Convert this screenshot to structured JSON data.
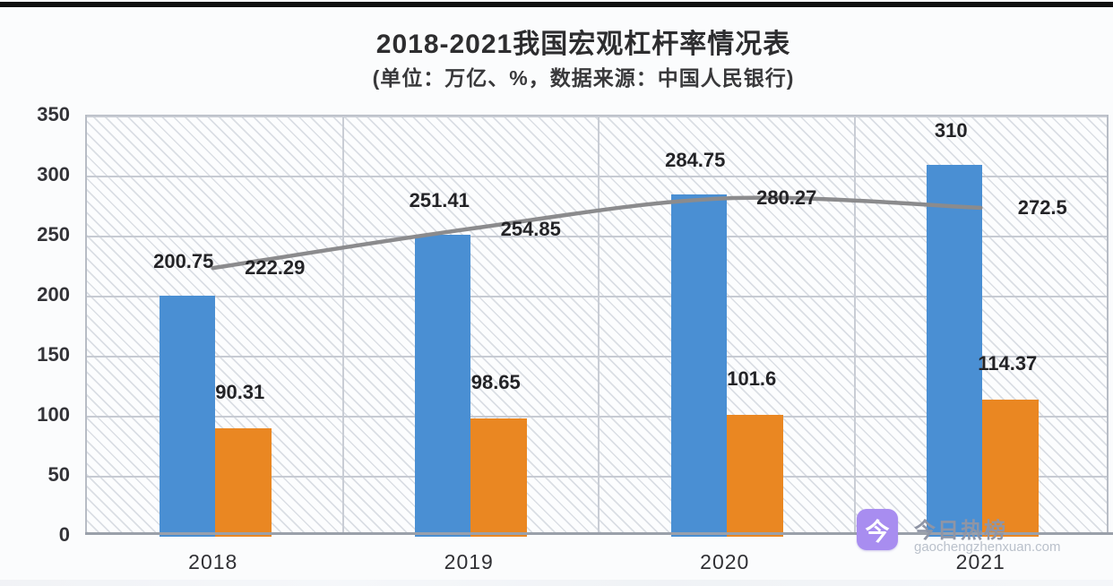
{
  "page": {
    "title": "2018-2021我国宏观杠杆率情况表",
    "subtitle": "(单位：万亿、%，数据来源：中国人民银行)"
  },
  "chart_data": {
    "type": "bar",
    "subtype": "grouped bars with overlaid smooth line",
    "title": "2018-2021我国宏观杠杆率情况表",
    "subtitle": "(单位：万亿、%，数据来源：中国人民银行)",
    "categories": [
      "2018",
      "2019",
      "2020",
      "2021"
    ],
    "series": [
      {
        "name": "blue-bar-series",
        "type": "bar",
        "color": "#4a8fd3",
        "values": [
          200.75,
          251.41,
          284.75,
          310
        ],
        "labels": [
          "200.75",
          "251.41",
          "284.75",
          "310"
        ]
      },
      {
        "name": "orange-bar-series",
        "type": "bar",
        "color": "#ea8722",
        "values": [
          90.31,
          98.65,
          101.6,
          114.37
        ],
        "labels": [
          "90.31",
          "98.65",
          "101.6",
          "114.37"
        ]
      },
      {
        "name": "gray-line-series",
        "type": "line",
        "color": "#8b8b8d",
        "values": [
          222.29,
          254.85,
          280.27,
          272.5
        ],
        "labels": [
          "222.29",
          "254.85",
          "280.27",
          "272.5"
        ]
      }
    ],
    "ylim": [
      0,
      350
    ],
    "ytick_step": 50,
    "yticks": [
      "0",
      "50",
      "100",
      "150",
      "200",
      "250",
      "300",
      "350"
    ],
    "grid": "horizontal and vertical light gray gridlines on hatched background",
    "legend_position": "cropped off bottom edge"
  },
  "watermark": {
    "icon_char": "今",
    "name": "今日热榜",
    "domain": "gaochengzhenxuan.com",
    "icon_color": "#a88df0"
  }
}
